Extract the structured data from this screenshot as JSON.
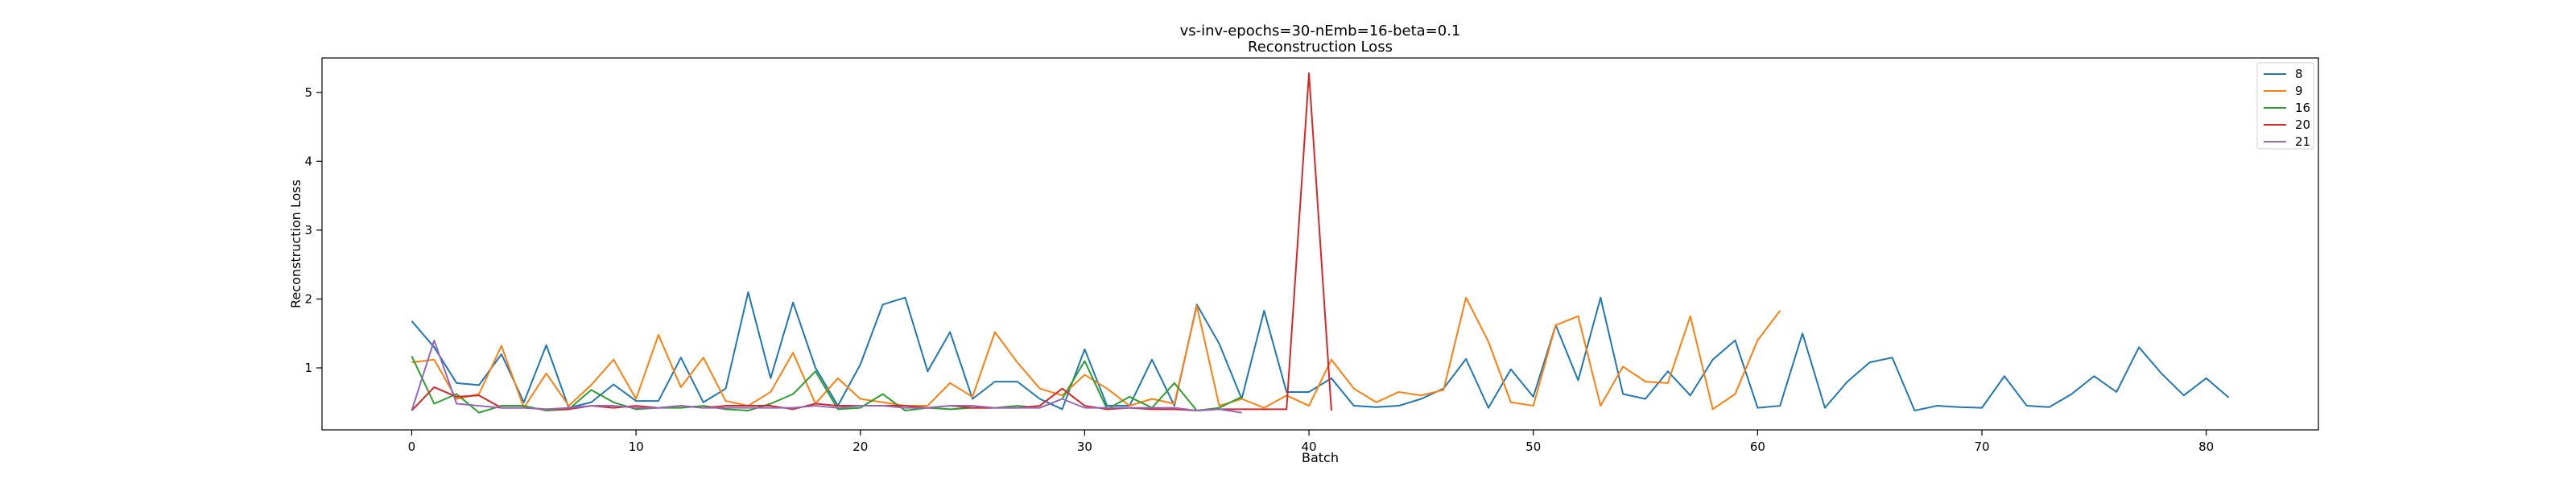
{
  "chart_data": {
    "type": "line",
    "title": "vs-inv-epochs=30-nEmb=16-beta=0.1",
    "subtitle": "Reconstruction Loss",
    "xlabel": "Batch",
    "ylabel": "Reconstruction Loss",
    "xlim": [
      -4,
      85
    ],
    "ylim": [
      0.1,
      5.5
    ],
    "xticks": [
      0,
      10,
      20,
      30,
      40,
      50,
      60,
      70,
      80
    ],
    "yticks": [
      1,
      2,
      3,
      4,
      5
    ],
    "grid": false,
    "legend_position": "top-right",
    "series": [
      {
        "name": "8",
        "color": "#1f77b4",
        "values": [
          1.68,
          1.3,
          0.78,
          0.75,
          1.2,
          0.5,
          1.33,
          0.42,
          0.5,
          0.76,
          0.52,
          0.52,
          1.15,
          0.5,
          0.7,
          2.1,
          0.85,
          1.95,
          1.0,
          0.45,
          1.05,
          1.92,
          2.02,
          0.95,
          1.52,
          0.55,
          0.8,
          0.8,
          0.55,
          0.4,
          1.27,
          0.45,
          0.45,
          1.12,
          0.45,
          1.92,
          1.35,
          0.55,
          1.83,
          0.65,
          0.65,
          0.85,
          0.45,
          0.43,
          0.45,
          0.55,
          0.7,
          1.13,
          0.42,
          0.98,
          0.58,
          1.62,
          0.82,
          2.02,
          0.62,
          0.55,
          0.95,
          0.6,
          1.12,
          1.4,
          0.42,
          0.45,
          1.5,
          0.42,
          0.8,
          1.08,
          1.15,
          0.38,
          0.45,
          0.43,
          0.42,
          0.88,
          0.45,
          0.43,
          0.62,
          0.88,
          0.65,
          1.3,
          0.92,
          0.6,
          0.85,
          0.57
        ]
      },
      {
        "name": "9",
        "color": "#ff7f0e",
        "values": [
          1.08,
          1.12,
          0.55,
          0.62,
          1.32,
          0.42,
          0.92,
          0.45,
          0.75,
          1.12,
          0.55,
          1.48,
          0.72,
          1.15,
          0.52,
          0.45,
          0.65,
          1.22,
          0.48,
          0.85,
          0.55,
          0.5,
          0.45,
          0.45,
          0.78,
          0.58,
          1.52,
          1.08,
          0.7,
          0.6,
          0.9,
          0.7,
          0.45,
          0.55,
          0.48,
          1.9,
          0.45,
          0.55,
          0.42,
          0.6,
          0.45,
          1.12,
          0.7,
          0.5,
          0.65,
          0.6,
          0.68,
          2.02,
          1.38,
          0.5,
          0.45,
          1.62,
          1.75,
          0.45,
          1.02,
          0.8,
          0.78,
          1.75,
          0.4,
          0.62,
          1.4,
          1.83
        ]
      },
      {
        "name": "16",
        "color": "#2ca02c",
        "values": [
          1.17,
          0.48,
          0.62,
          0.35,
          0.45,
          0.45,
          0.38,
          0.4,
          0.68,
          0.5,
          0.4,
          0.42,
          0.42,
          0.45,
          0.4,
          0.38,
          0.48,
          0.62,
          0.95,
          0.4,
          0.42,
          0.62,
          0.38,
          0.42,
          0.4,
          0.42,
          0.42,
          0.45,
          0.42,
          0.55,
          1.1,
          0.4,
          0.58,
          0.42,
          0.78,
          0.38,
          0.42,
          0.58
        ]
      },
      {
        "name": "20",
        "color": "#d62728",
        "values": [
          0.38,
          0.72,
          0.58,
          0.6,
          0.42,
          0.42,
          0.4,
          0.4,
          0.45,
          0.42,
          0.45,
          0.42,
          0.45,
          0.42,
          0.45,
          0.45,
          0.45,
          0.4,
          0.48,
          0.45,
          0.45,
          0.45,
          0.45,
          0.42,
          0.45,
          0.42,
          0.42,
          0.42,
          0.45,
          0.7,
          0.45,
          0.4,
          0.42,
          0.4,
          0.4,
          0.38,
          0.4,
          0.4,
          0.4,
          0.4,
          5.28,
          0.38
        ]
      },
      {
        "name": "21",
        "color": "#9467bd",
        "values": [
          0.38,
          1.4,
          0.48,
          0.45,
          0.42,
          0.42,
          0.4,
          0.42,
          0.45,
          0.45,
          0.42,
          0.42,
          0.45,
          0.42,
          0.42,
          0.42,
          0.42,
          0.42,
          0.45,
          0.42,
          0.45,
          0.45,
          0.42,
          0.42,
          0.45,
          0.45,
          0.42,
          0.42,
          0.42,
          0.55,
          0.42,
          0.42,
          0.42,
          0.42,
          0.42,
          0.38,
          0.4,
          0.35
        ]
      }
    ]
  }
}
